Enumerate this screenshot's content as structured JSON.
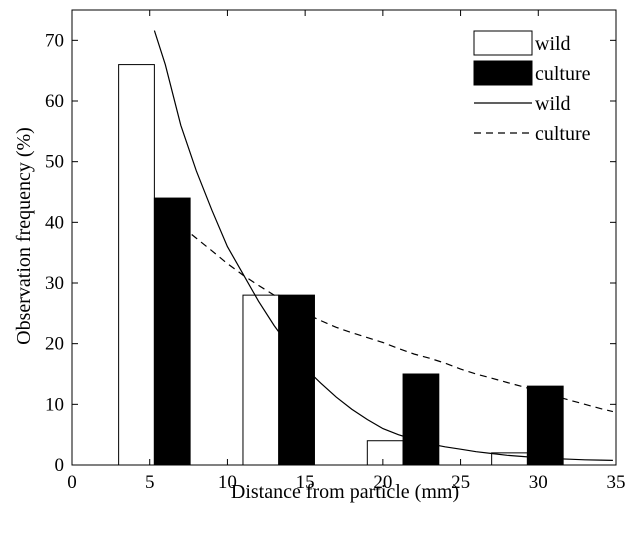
{
  "chart_data": {
    "type": "bar",
    "xlabel": "Distance from particle (mm)",
    "ylabel": "Observation frequency (%)",
    "xlim": [
      0,
      35
    ],
    "ylim": [
      0,
      75
    ],
    "grid": false,
    "legend_position": "top-right",
    "x_ticks": [
      0,
      5,
      10,
      15,
      20,
      25,
      30,
      35
    ],
    "y_ticks": [
      0,
      10,
      20,
      30,
      40,
      50,
      60,
      70
    ],
    "bar_series": [
      {
        "name": "wild",
        "style": "outline",
        "fill": "#ffffff",
        "stroke": "#000000",
        "bars": [
          {
            "x_start": 3,
            "x_end": 5.3,
            "value": 66
          },
          {
            "x_start": 11,
            "x_end": 13.3,
            "value": 28
          },
          {
            "x_start": 19,
            "x_end": 21.3,
            "value": 4
          },
          {
            "x_start": 27,
            "x_end": 29.3,
            "value": 2
          }
        ]
      },
      {
        "name": "culture",
        "style": "filled",
        "fill": "#000000",
        "stroke": "#000000",
        "bars": [
          {
            "x_start": 5.3,
            "x_end": 7.6,
            "value": 44
          },
          {
            "x_start": 13.3,
            "x_end": 15.6,
            "value": 28
          },
          {
            "x_start": 21.3,
            "x_end": 23.6,
            "value": 15
          },
          {
            "x_start": 29.3,
            "x_end": 31.6,
            "value": 13
          }
        ]
      }
    ],
    "line_series": [
      {
        "name": "wild",
        "dash": "solid",
        "color": "#000000",
        "points": [
          [
            5.3,
            71.6
          ],
          [
            6,
            66
          ],
          [
            7,
            56
          ],
          [
            8,
            48.5
          ],
          [
            9,
            42
          ],
          [
            10,
            36
          ],
          [
            11,
            31.5
          ],
          [
            12,
            27
          ],
          [
            13,
            23
          ],
          [
            14,
            19.5
          ],
          [
            15,
            16
          ],
          [
            16,
            13.5
          ],
          [
            17,
            11.2
          ],
          [
            18,
            9.2
          ],
          [
            19,
            7.5
          ],
          [
            20,
            6
          ],
          [
            21,
            5
          ],
          [
            22,
            4.2
          ],
          [
            23,
            3.5
          ],
          [
            24,
            3
          ],
          [
            25,
            2.6
          ],
          [
            26,
            2.2
          ],
          [
            27,
            1.9
          ],
          [
            28,
            1.6
          ],
          [
            29,
            1.4
          ],
          [
            30,
            1.2
          ],
          [
            31,
            1.05
          ],
          [
            32,
            0.95
          ],
          [
            33,
            0.85
          ],
          [
            34,
            0.8
          ],
          [
            34.8,
            0.75
          ]
        ]
      },
      {
        "name": "culture",
        "dash": "dashed",
        "color": "#000000",
        "points": [
          [
            7.7,
            38
          ],
          [
            9,
            35.3
          ],
          [
            10,
            33.2
          ],
          [
            11,
            31.3
          ],
          [
            12,
            29.6
          ],
          [
            13,
            28
          ],
          [
            14,
            26.4
          ],
          [
            15,
            25
          ],
          [
            16,
            23.8
          ],
          [
            17,
            22.7
          ],
          [
            18,
            21.8
          ],
          [
            19,
            21
          ],
          [
            20,
            20.2
          ],
          [
            21,
            19.2
          ],
          [
            22,
            18.3
          ],
          [
            23,
            17.6
          ],
          [
            24,
            16.8
          ],
          [
            25,
            15.8
          ],
          [
            26,
            15
          ],
          [
            27,
            14.3
          ],
          [
            28,
            13.6
          ],
          [
            29,
            12.9
          ],
          [
            30,
            12.2
          ],
          [
            31,
            11.4
          ],
          [
            32,
            10.7
          ],
          [
            33,
            10
          ],
          [
            34,
            9.3
          ],
          [
            34.8,
            8.8
          ]
        ]
      }
    ]
  },
  "legend": {
    "items": [
      {
        "label": "wild",
        "kind": "bar-outline"
      },
      {
        "label": "culture",
        "kind": "bar-filled"
      },
      {
        "label": "wild",
        "kind": "line-solid"
      },
      {
        "label": "culture",
        "kind": "line-dashed"
      }
    ]
  }
}
